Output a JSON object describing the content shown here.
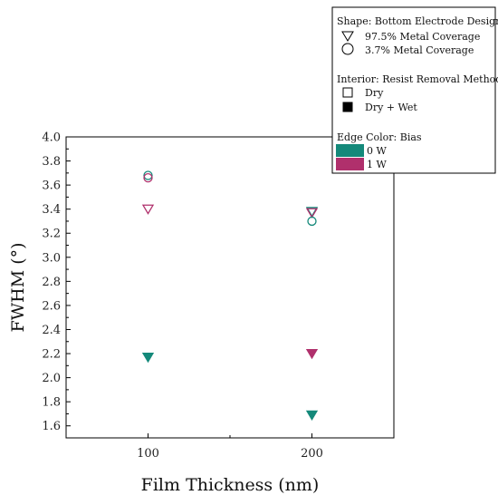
{
  "chart_data": {
    "type": "scatter",
    "xlabel": "Film Thickness (nm)",
    "ylabel": "FWHM (°)",
    "x_ticks": [
      "100",
      "200"
    ],
    "xlim": [
      50,
      250
    ],
    "ylim": [
      1.5,
      4.0
    ],
    "y_ticks": [
      "1.6",
      "1.8",
      "2.0",
      "2.2",
      "2.4",
      "2.6",
      "2.8",
      "3.0",
      "3.2",
      "3.4",
      "3.6",
      "3.8",
      "4.0"
    ],
    "grid": false,
    "legend_position": "top-right",
    "colors": {
      "0 W": "#14897a",
      "1 W": "#b0306c"
    },
    "points": [
      {
        "x": 100,
        "y": 3.68,
        "shape": "circle",
        "fill": "open",
        "bias": "0 W"
      },
      {
        "x": 100,
        "y": 3.66,
        "shape": "circle",
        "fill": "open",
        "bias": "1 W"
      },
      {
        "x": 100,
        "y": 3.4,
        "shape": "triangle",
        "fill": "open",
        "bias": "1 W"
      },
      {
        "x": 100,
        "y": 2.17,
        "shape": "triangle",
        "fill": "filled",
        "bias": "0 W"
      },
      {
        "x": 200,
        "y": 3.38,
        "shape": "triangle",
        "fill": "open",
        "bias": "0 W"
      },
      {
        "x": 200,
        "y": 3.37,
        "shape": "triangle",
        "fill": "open",
        "bias": "1 W"
      },
      {
        "x": 200,
        "y": 3.3,
        "shape": "circle",
        "fill": "open",
        "bias": "0 W"
      },
      {
        "x": 200,
        "y": 2.2,
        "shape": "triangle",
        "fill": "filled",
        "bias": "1 W"
      },
      {
        "x": 200,
        "y": 1.69,
        "shape": "triangle",
        "fill": "filled",
        "bias": "0 W"
      }
    ],
    "legend": {
      "shape_title": "Shape:  Bottom Electrode Design",
      "shape_items": [
        {
          "symbol": "triangle",
          "label": "97.5% Metal Coverage"
        },
        {
          "symbol": "circle",
          "label": "3.7% Metal Coverage"
        }
      ],
      "interior_title": "Interior:  Resist Removal Method",
      "interior_items": [
        {
          "symbol": "open",
          "label": "Dry"
        },
        {
          "symbol": "filled",
          "label": "Dry + Wet"
        }
      ],
      "edge_title": "Edge Color:  Bias",
      "edge_items": [
        {
          "color": "#14897a",
          "label": "0 W"
        },
        {
          "color": "#b0306c",
          "label": "1 W"
        }
      ]
    }
  }
}
